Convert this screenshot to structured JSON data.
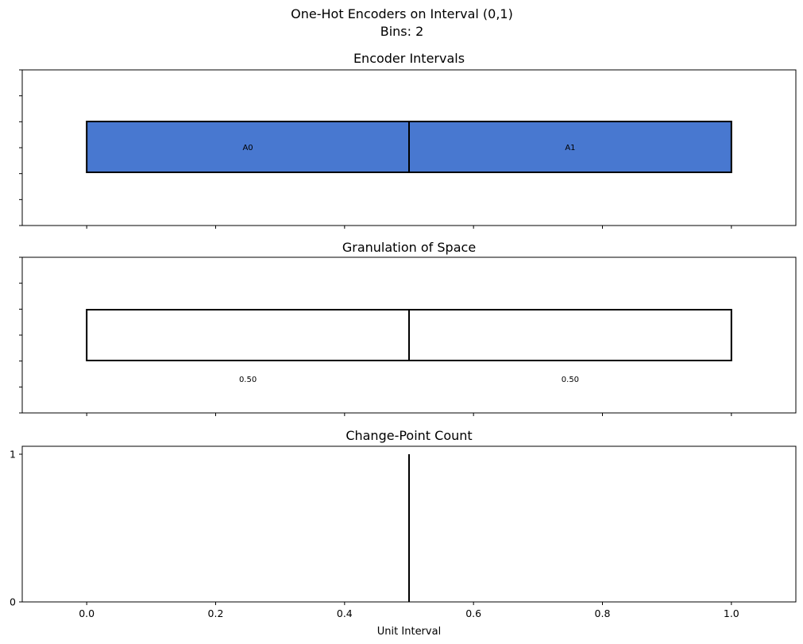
{
  "figure": {
    "suptitle_line1": "One-Hot Encoders on Interval (0,1)",
    "suptitle_line2": "Bins: 2"
  },
  "colors": {
    "encoder_fill": "#4878d0",
    "edge": "#000000",
    "background": "#ffffff"
  },
  "chart_data": [
    {
      "type": "bar",
      "title": "Encoder Intervals",
      "xlim": [
        -0.1,
        1.1
      ],
      "show_x_tick_labels": false,
      "show_y_tick_labels": false,
      "intervals": [
        {
          "label": "A0",
          "start": 0.0,
          "end": 0.5
        },
        {
          "label": "A1",
          "start": 0.5,
          "end": 1.0
        }
      ]
    },
    {
      "type": "bar",
      "title": "Granulation of Space",
      "xlim": [
        -0.1,
        1.1
      ],
      "show_x_tick_labels": false,
      "show_y_tick_labels": false,
      "granules": [
        {
          "start": 0.0,
          "end": 0.5,
          "width_label": "0.50"
        },
        {
          "start": 0.5,
          "end": 1.0,
          "width_label": "0.50"
        }
      ]
    },
    {
      "type": "line",
      "title": "Change-Point Count",
      "xlabel": "Unit Interval",
      "xlim": [
        -0.1,
        1.1
      ],
      "ylim": [
        0,
        1
      ],
      "x_ticks": [
        "0.0",
        "0.2",
        "0.4",
        "0.6",
        "0.8",
        "1.0"
      ],
      "y_ticks": [
        "0",
        "1"
      ],
      "change_points": [
        {
          "x": 0.5,
          "count": 1
        }
      ]
    }
  ]
}
